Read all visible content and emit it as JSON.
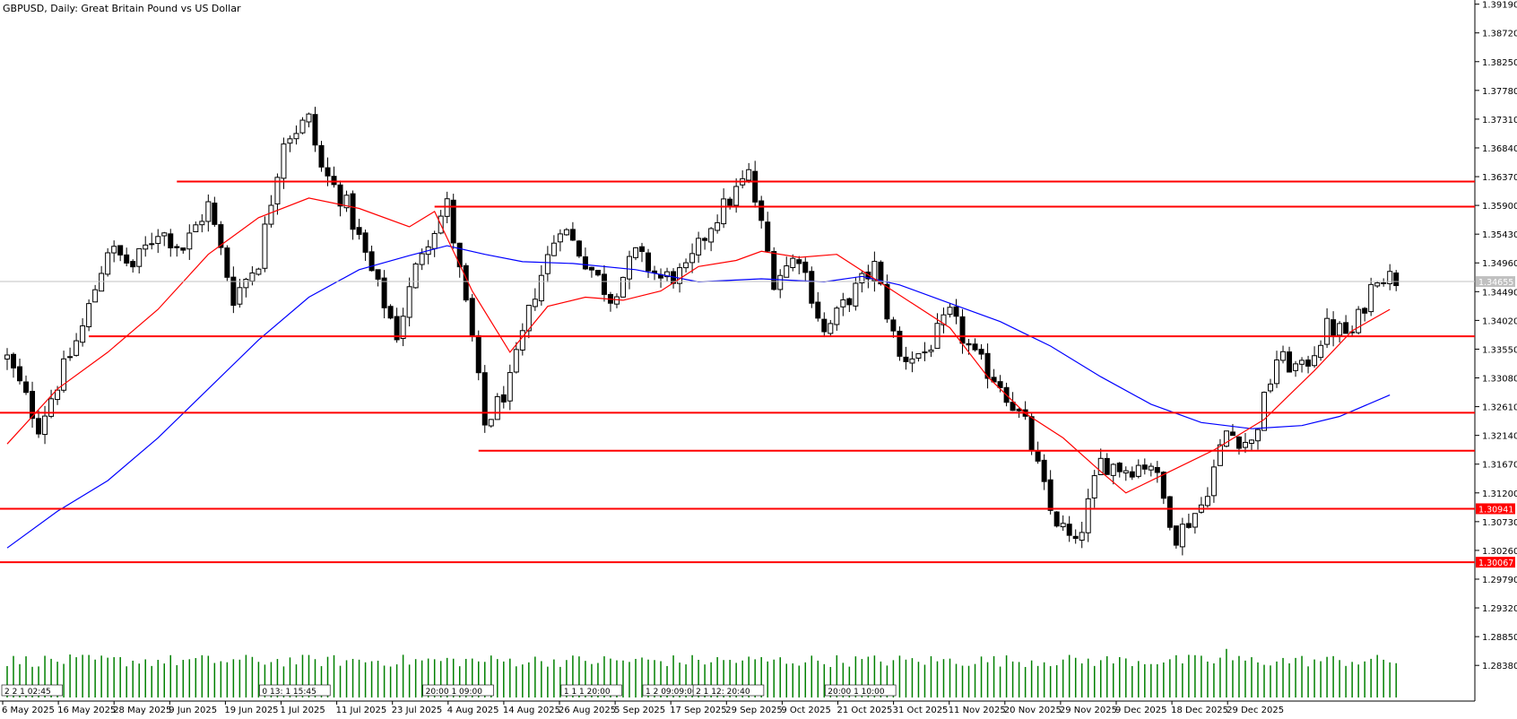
{
  "title": "GBPUSD, Daily:  Great Britain Pound vs US Dollar",
  "colors": {
    "background": "#ffffff",
    "axis": "#000000",
    "candle": "#000000",
    "candle_up_fill": "#ffffff",
    "candle_down_fill": "#000000",
    "ma_fast": "#ff0000",
    "ma_slow": "#0000ff",
    "level_line": "#ff0000",
    "volume": "#008000",
    "bid_line": "#c0c0c0",
    "bid_tag": "#c0c0c0",
    "level_tag": "#ff0000"
  },
  "chart_data": {
    "type": "candlestick",
    "symbol": "GBPUSD",
    "timeframe": "Daily",
    "ylim": [
      1.2787,
      1.3917
    ],
    "y_ticks": [
      "1.39190",
      "1.38720",
      "1.38250",
      "1.37780",
      "1.37310",
      "1.36840",
      "1.36370",
      "1.35900",
      "1.35430",
      "1.34960",
      "1.34490",
      "1.34020",
      "1.33550",
      "1.33080",
      "1.32610",
      "1.32140",
      "1.31670",
      "1.31200",
      "1.30730",
      "1.30260",
      "1.29790",
      "1.29320",
      "1.28850",
      "1.28380"
    ],
    "x_labels": [
      "6 May 2025",
      "16 May 2025",
      "28 May 2025",
      "9 Jun 2025",
      "19 Jun 2025",
      "1 Jul 2025",
      "11 Jul 2025",
      "23 Jul 2025",
      "4 Aug 2025",
      "14 Aug 2025",
      "26 Aug 2025",
      "5 Sep 2025",
      "17 Sep 2025",
      "29 Sep 2025",
      "9 Oct 2025",
      "21 Oct 2025",
      "31 Oct 2025",
      "11 Nov 2025",
      "20 Nov 2025",
      "29 Nov 2025",
      "9 Dec 2025",
      "18 Dec 2025",
      "29 Dec 2025"
    ],
    "current_price": "1.34655",
    "horizontal_levels": [
      {
        "value": 1.3629,
        "start": 27
      },
      {
        "value": 1.3588,
        "start": 68
      },
      {
        "value": 1.3376,
        "start": 13
      },
      {
        "value": 1.3251,
        "start": 0
      },
      {
        "value": 1.3189,
        "start": 75
      },
      {
        "value": 1.30941,
        "start": 0,
        "tag": "1.30941"
      },
      {
        "value": 1.30067,
        "start": 0,
        "tag": "1.30067"
      }
    ],
    "ma_fast_anchors": [
      [
        0,
        1.32
      ],
      [
        8,
        1.329
      ],
      [
        16,
        1.335
      ],
      [
        24,
        1.342
      ],
      [
        32,
        1.351
      ],
      [
        40,
        1.357
      ],
      [
        48,
        1.3602
      ],
      [
        56,
        1.3585
      ],
      [
        64,
        1.3555
      ],
      [
        68,
        1.358
      ],
      [
        74,
        1.345
      ],
      [
        80,
        1.335
      ],
      [
        86,
        1.3425
      ],
      [
        92,
        1.344
      ],
      [
        98,
        1.3435
      ],
      [
        104,
        1.345
      ],
      [
        110,
        1.349
      ],
      [
        116,
        1.35
      ],
      [
        120,
        1.3515
      ],
      [
        126,
        1.3505
      ],
      [
        132,
        1.351
      ],
      [
        138,
        1.347
      ],
      [
        144,
        1.343
      ],
      [
        150,
        1.339
      ],
      [
        156,
        1.331
      ],
      [
        162,
        1.325
      ],
      [
        168,
        1.321
      ],
      [
        174,
        1.3155
      ],
      [
        178,
        1.312
      ],
      [
        184,
        1.315
      ],
      [
        192,
        1.319
      ],
      [
        200,
        1.324
      ],
      [
        208,
        1.332
      ],
      [
        214,
        1.3385
      ],
      [
        220,
        1.342
      ]
    ],
    "ma_slow_anchors": [
      [
        0,
        1.303
      ],
      [
        8,
        1.309
      ],
      [
        16,
        1.314
      ],
      [
        24,
        1.321
      ],
      [
        32,
        1.329
      ],
      [
        40,
        1.337
      ],
      [
        48,
        1.344
      ],
      [
        56,
        1.3485
      ],
      [
        64,
        1.3508
      ],
      [
        70,
        1.3524
      ],
      [
        76,
        1.351
      ],
      [
        82,
        1.3498
      ],
      [
        90,
        1.3495
      ],
      [
        100,
        1.3485
      ],
      [
        110,
        1.3465
      ],
      [
        120,
        1.347
      ],
      [
        130,
        1.3465
      ],
      [
        136,
        1.3474
      ],
      [
        142,
        1.346
      ],
      [
        150,
        1.343
      ],
      [
        158,
        1.34
      ],
      [
        166,
        1.336
      ],
      [
        174,
        1.331
      ],
      [
        182,
        1.3265
      ],
      [
        190,
        1.3235
      ],
      [
        198,
        1.3225
      ],
      [
        206,
        1.323
      ],
      [
        212,
        1.3245
      ],
      [
        220,
        1.328
      ]
    ],
    "overlay_tags": [
      "2 2 1 02:45",
      "0 13: 1 15:45",
      "20:00 1 09:00",
      "1 1 1 20:00",
      "1 2 09:09:00",
      "2 1 12: 20:40",
      "20:00 1 10:00"
    ]
  }
}
